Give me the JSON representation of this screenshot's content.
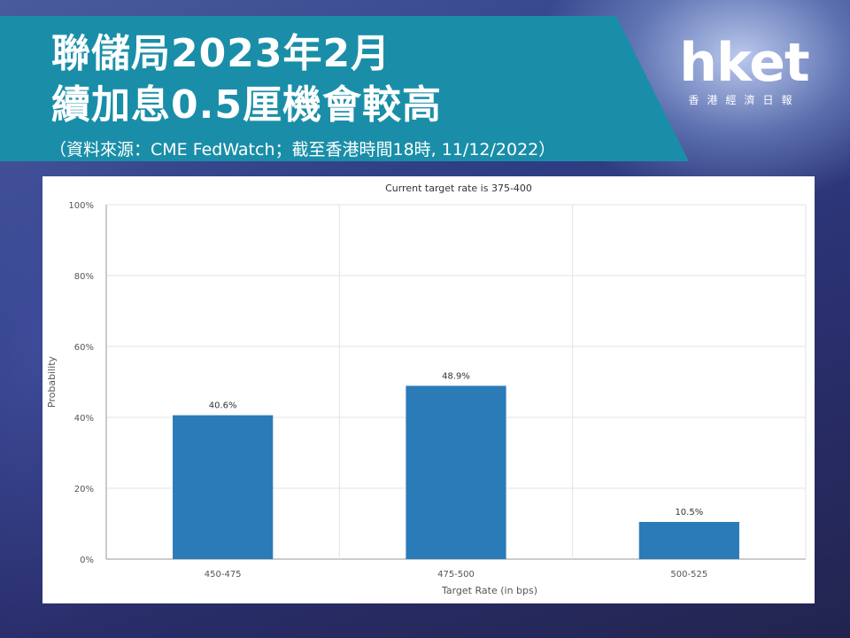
{
  "banner": {
    "title_line1": "聯儲局2023年2月",
    "title_line2": "續加息0.5厘機會較高",
    "source": "（資料來源：CME FedWatch；截至香港時間18時, 11/12/2022）",
    "color": "#1a8ea8"
  },
  "logo": {
    "text": "hket",
    "subtitle": "香港經濟日報"
  },
  "chart_data": {
    "type": "bar",
    "title": "Current target rate is 375-400",
    "xlabel": "Target Rate (in bps)",
    "ylabel": "Probability",
    "categories": [
      "450-475",
      "475-500",
      "500-525"
    ],
    "values": [
      40.6,
      48.9,
      10.5
    ],
    "value_labels": [
      "40.6%",
      "48.9%",
      "10.5%"
    ],
    "ylim": [
      0,
      100
    ],
    "yticks": [
      0,
      20,
      40,
      60,
      80,
      100
    ],
    "ytick_labels": [
      "0%",
      "20%",
      "40%",
      "60%",
      "80%",
      "100%"
    ],
    "grid": true,
    "bar_color": "#2b7bb9"
  }
}
